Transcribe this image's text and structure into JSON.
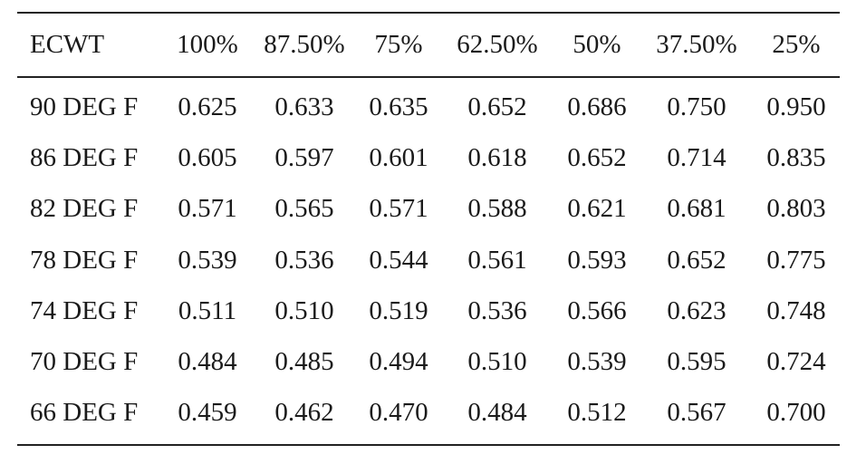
{
  "table": {
    "headers": [
      "ECWT",
      "100%",
      "87.50%",
      "75%",
      "62.50%",
      "50%",
      "37.50%",
      "25%"
    ],
    "rows": [
      {
        "label": "90 DEG F",
        "values": [
          "0.625",
          "0.633",
          "0.635",
          "0.652",
          "0.686",
          "0.750",
          "0.950"
        ]
      },
      {
        "label": "86 DEG F",
        "values": [
          "0.605",
          "0.597",
          "0.601",
          "0.618",
          "0.652",
          "0.714",
          "0.835"
        ]
      },
      {
        "label": "82 DEG F",
        "values": [
          "0.571",
          "0.565",
          "0.571",
          "0.588",
          "0.621",
          "0.681",
          "0.803"
        ]
      },
      {
        "label": "78 DEG F",
        "values": [
          "0.539",
          "0.536",
          "0.544",
          "0.561",
          "0.593",
          "0.652",
          "0.775"
        ]
      },
      {
        "label": "74 DEG F",
        "values": [
          "0.511",
          "0.510",
          "0.519",
          "0.536",
          "0.566",
          "0.623",
          "0.748"
        ]
      },
      {
        "label": "70 DEG F",
        "values": [
          "0.484",
          "0.485",
          "0.494",
          "0.510",
          "0.539",
          "0.595",
          "0.724"
        ]
      },
      {
        "label": "66 DEG F",
        "values": [
          "0.459",
          "0.462",
          "0.470",
          "0.484",
          "0.512",
          "0.567",
          "0.700"
        ]
      }
    ]
  }
}
